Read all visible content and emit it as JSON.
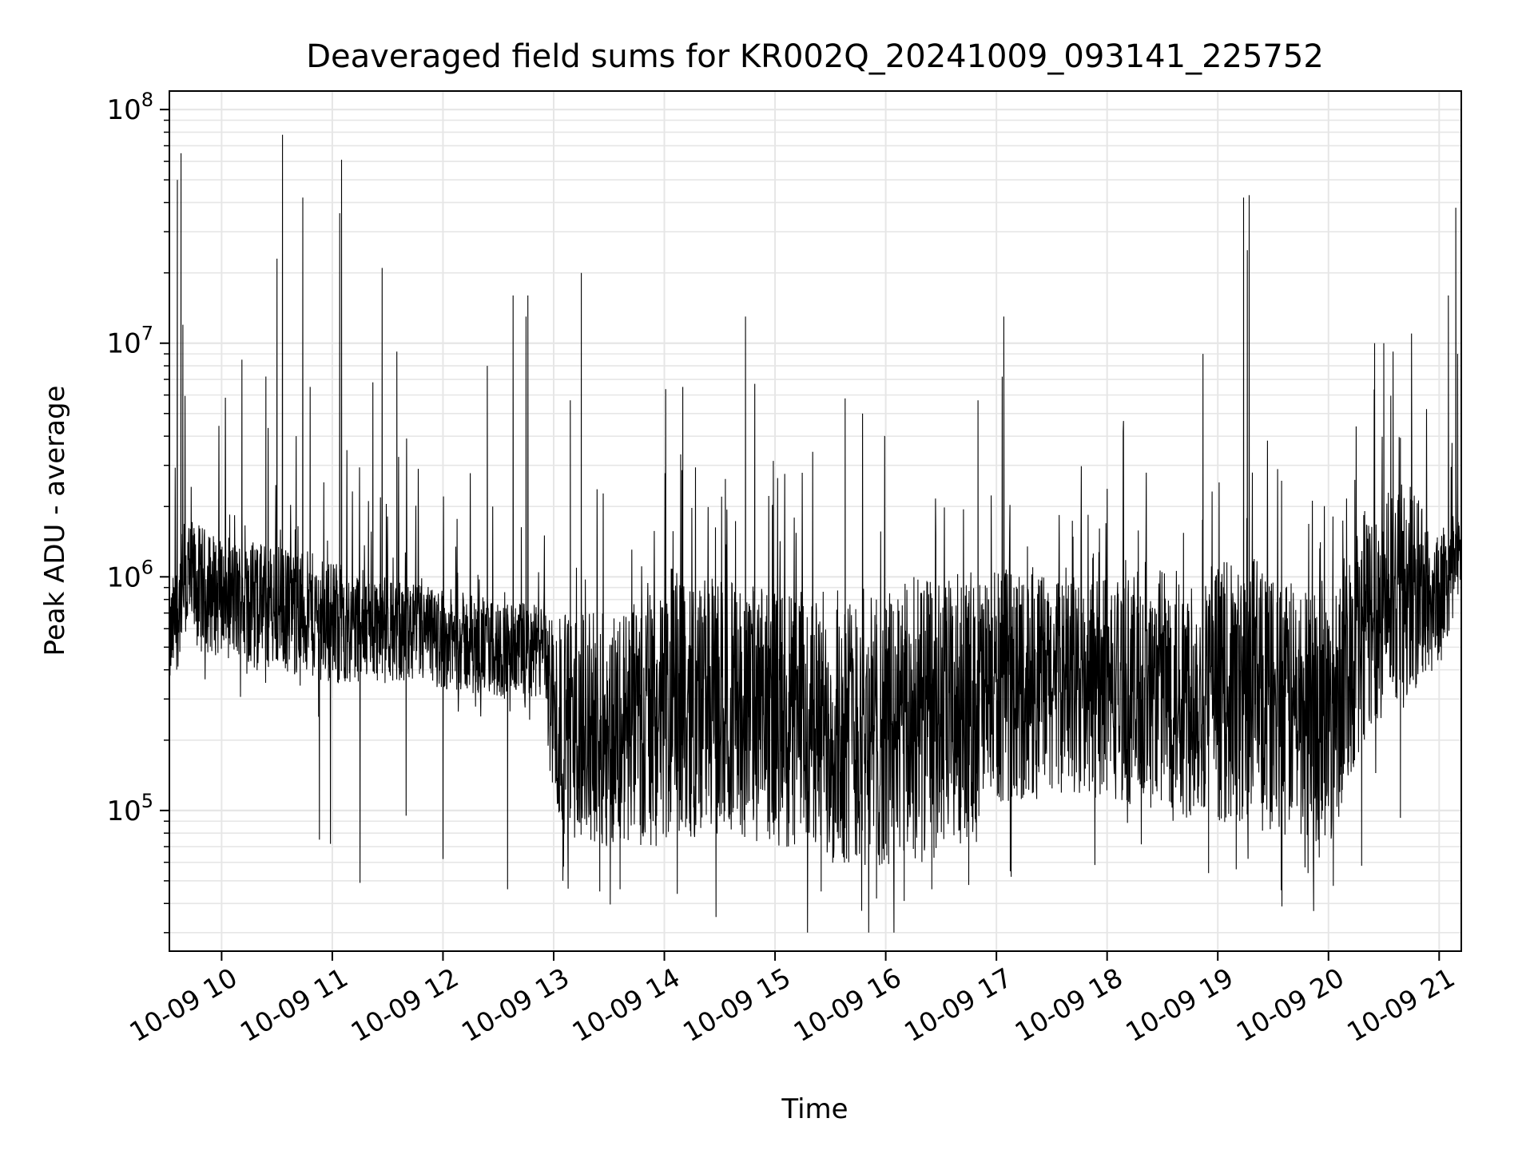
{
  "chart_data": {
    "type": "line",
    "title": "Deaveraged field sums for KR002Q_20241009_093141_225752",
    "xlabel": "Time",
    "ylabel": "Peak ADU - average",
    "x_range": [
      "2024-10-09 09:31:41",
      "2024-10-09 21:12:00"
    ],
    "y_scale": "log",
    "ylim": [
      25000,
      120000000
    ],
    "grid": true,
    "line_color": "#000000",
    "grid_color": "#e6e6e6",
    "x_ticks": [
      {
        "value": "2024-10-09 10:00",
        "label": "10-09 10"
      },
      {
        "value": "2024-10-09 11:00",
        "label": "10-09 11"
      },
      {
        "value": "2024-10-09 12:00",
        "label": "10-09 12"
      },
      {
        "value": "2024-10-09 13:00",
        "label": "10-09 13"
      },
      {
        "value": "2024-10-09 14:00",
        "label": "10-09 14"
      },
      {
        "value": "2024-10-09 15:00",
        "label": "10-09 15"
      },
      {
        "value": "2024-10-09 16:00",
        "label": "10-09 16"
      },
      {
        "value": "2024-10-09 17:00",
        "label": "10-09 17"
      },
      {
        "value": "2024-10-09 18:00",
        "label": "10-09 18"
      },
      {
        "value": "2024-10-09 19:00",
        "label": "10-09 19"
      },
      {
        "value": "2024-10-09 20:00",
        "label": "10-09 20"
      },
      {
        "value": "2024-10-09 21:00",
        "label": "10-09 21"
      }
    ],
    "y_ticks": [
      {
        "value": 100000,
        "base": "10",
        "exp": "5"
      },
      {
        "value": 1000000,
        "base": "10",
        "exp": "6"
      },
      {
        "value": 10000000,
        "base": "10",
        "exp": "7"
      },
      {
        "value": 100000000,
        "base": "10",
        "exp": "8"
      }
    ],
    "series": [
      {
        "envelope": [
          {
            "t": "2024-10-09 09:31",
            "lo": 300000,
            "hi": 800000
          },
          {
            "t": "2024-10-09 09:40",
            "lo": 500000,
            "hi": 1800000
          },
          {
            "t": "2024-10-09 10:00",
            "lo": 450000,
            "hi": 1500000
          },
          {
            "t": "2024-10-09 10:30",
            "lo": 400000,
            "hi": 1400000
          },
          {
            "t": "2024-10-09 11:00",
            "lo": 350000,
            "hi": 1200000
          },
          {
            "t": "2024-10-09 11:30",
            "lo": 350000,
            "hi": 1000000
          },
          {
            "t": "2024-10-09 12:00",
            "lo": 330000,
            "hi": 900000
          },
          {
            "t": "2024-10-09 12:30",
            "lo": 300000,
            "hi": 800000
          },
          {
            "t": "2024-10-09 12:55",
            "lo": 300000,
            "hi": 750000
          },
          {
            "t": "2024-10-09 13:00",
            "lo": 80000,
            "hi": 700000
          },
          {
            "t": "2024-10-09 13:30",
            "lo": 70000,
            "hi": 700000
          },
          {
            "t": "2024-10-09 14:00",
            "lo": 70000,
            "hi": 900000
          },
          {
            "t": "2024-10-09 14:30",
            "lo": 80000,
            "hi": 1000000
          },
          {
            "t": "2024-10-09 15:00",
            "lo": 70000,
            "hi": 900000
          },
          {
            "t": "2024-10-09 15:30",
            "lo": 60000,
            "hi": 900000
          },
          {
            "t": "2024-10-09 16:00",
            "lo": 55000,
            "hi": 900000
          },
          {
            "t": "2024-10-09 16:30",
            "lo": 60000,
            "hi": 1000000
          },
          {
            "t": "2024-10-09 17:00",
            "lo": 100000,
            "hi": 1100000
          },
          {
            "t": "2024-10-09 17:30",
            "lo": 120000,
            "hi": 1000000
          },
          {
            "t": "2024-10-09 18:00",
            "lo": 110000,
            "hi": 1000000
          },
          {
            "t": "2024-10-09 18:30",
            "lo": 100000,
            "hi": 1100000
          },
          {
            "t": "2024-10-09 19:00",
            "lo": 90000,
            "hi": 1200000
          },
          {
            "t": "2024-10-09 19:30",
            "lo": 80000,
            "hi": 1000000
          },
          {
            "t": "2024-10-09 20:00",
            "lo": 70000,
            "hi": 900000
          },
          {
            "t": "2024-10-09 20:20",
            "lo": 200000,
            "hi": 2000000
          },
          {
            "t": "2024-10-09 20:40",
            "lo": 300000,
            "hi": 3000000
          },
          {
            "t": "2024-10-09 21:00",
            "lo": 400000,
            "hi": 1500000
          },
          {
            "t": "2024-10-09 21:12",
            "lo": 900000,
            "hi": 1800000
          }
        ],
        "spikes": [
          {
            "t": "2024-10-09 09:36",
            "y": 50000000
          },
          {
            "t": "2024-10-09 09:38",
            "y": 65000000
          },
          {
            "t": "2024-10-09 09:39",
            "y": 12000000
          },
          {
            "t": "2024-10-09 10:11",
            "y": 8500000
          },
          {
            "t": "2024-10-09 10:24",
            "y": 7200000
          },
          {
            "t": "2024-10-09 10:30",
            "y": 23000000
          },
          {
            "t": "2024-10-09 10:33",
            "y": 78000000
          },
          {
            "t": "2024-10-09 10:44",
            "y": 42000000
          },
          {
            "t": "2024-10-09 10:48",
            "y": 6500000
          },
          {
            "t": "2024-10-09 11:04",
            "y": 36000000
          },
          {
            "t": "2024-10-09 11:05",
            "y": 61000000
          },
          {
            "t": "2024-10-09 11:22",
            "y": 6800000
          },
          {
            "t": "2024-10-09 11:27",
            "y": 21000000
          },
          {
            "t": "2024-10-09 11:35",
            "y": 9200000
          },
          {
            "t": "2024-10-09 12:24",
            "y": 8000000
          },
          {
            "t": "2024-10-09 12:38",
            "y": 16000000
          },
          {
            "t": "2024-10-09 12:45",
            "y": 13000000
          },
          {
            "t": "2024-10-09 12:46",
            "y": 16000000
          },
          {
            "t": "2024-10-09 13:09",
            "y": 5700000
          },
          {
            "t": "2024-10-09 13:15",
            "y": 20000000
          },
          {
            "t": "2024-10-09 14:10",
            "y": 6500000
          },
          {
            "t": "2024-10-09 14:44",
            "y": 13000000
          },
          {
            "t": "2024-10-09 14:49",
            "y": 6700000
          },
          {
            "t": "2024-10-09 15:38",
            "y": 5800000
          },
          {
            "t": "2024-10-09 16:50",
            "y": 5700000
          },
          {
            "t": "2024-10-09 17:04",
            "y": 13000000
          },
          {
            "t": "2024-10-09 18:52",
            "y": 9000000
          },
          {
            "t": "2024-10-09 19:14",
            "y": 42000000
          },
          {
            "t": "2024-10-09 19:17",
            "y": 43000000
          },
          {
            "t": "2024-10-09 19:16",
            "y": 25000000
          },
          {
            "t": "2024-10-09 20:15",
            "y": 4400000
          },
          {
            "t": "2024-10-09 20:25",
            "y": 10000000
          },
          {
            "t": "2024-10-09 20:30",
            "y": 10000000
          },
          {
            "t": "2024-10-09 20:35",
            "y": 9200000
          },
          {
            "t": "2024-10-09 20:45",
            "y": 11000000
          },
          {
            "t": "2024-10-09 21:05",
            "y": 16000000
          },
          {
            "t": "2024-10-09 21:09",
            "y": 38000000
          },
          {
            "t": "2024-10-09 21:10",
            "y": 9000000
          }
        ],
        "dips": [
          {
            "t": "2024-10-09 10:53",
            "y": 75000
          },
          {
            "t": "2024-10-09 10:59",
            "y": 72000
          },
          {
            "t": "2024-10-09 11:15",
            "y": 49000
          },
          {
            "t": "2024-10-09 11:40",
            "y": 95000
          },
          {
            "t": "2024-10-09 12:00",
            "y": 62000
          },
          {
            "t": "2024-10-09 12:35",
            "y": 46000
          },
          {
            "t": "2024-10-09 13:05",
            "y": 50000
          },
          {
            "t": "2024-10-09 13:25",
            "y": 45000
          },
          {
            "t": "2024-10-09 13:36",
            "y": 46000
          },
          {
            "t": "2024-10-09 14:07",
            "y": 44000
          },
          {
            "t": "2024-10-09 14:28",
            "y": 35000
          },
          {
            "t": "2024-10-09 15:25",
            "y": 45000
          },
          {
            "t": "2024-10-09 15:55",
            "y": 42000
          },
          {
            "t": "2024-10-09 16:10",
            "y": 41000
          },
          {
            "t": "2024-10-09 16:25",
            "y": 46000
          },
          {
            "t": "2024-10-09 16:45",
            "y": 48000
          },
          {
            "t": "2024-10-09 17:08",
            "y": 52000
          },
          {
            "t": "2024-10-09 18:55",
            "y": 54000
          },
          {
            "t": "2024-10-09 19:10",
            "y": 56000
          },
          {
            "t": "2024-10-09 19:55",
            "y": 63000
          },
          {
            "t": "2024-10-09 20:18",
            "y": 58000
          },
          {
            "t": "2024-10-09 20:39",
            "y": 93000
          }
        ]
      }
    ]
  }
}
